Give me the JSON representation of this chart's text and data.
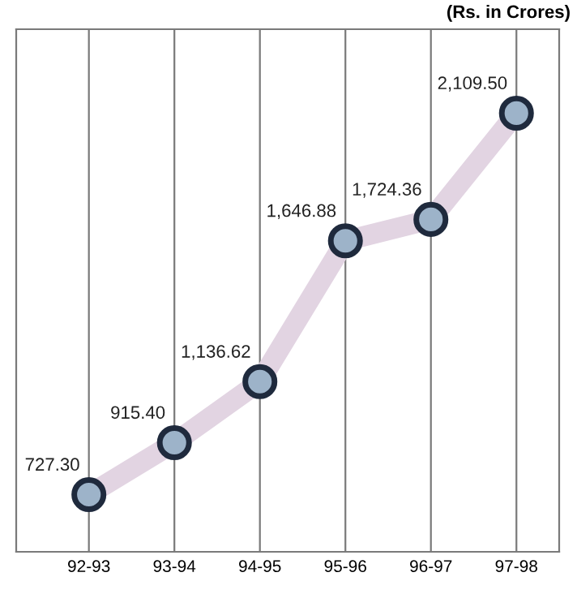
{
  "chart_data": {
    "type": "line",
    "title": "(Rs. in Crores)",
    "categories": [
      "92-93",
      "93-94",
      "94-95",
      "95-96",
      "96-97",
      "97-98"
    ],
    "series": [
      {
        "color": "#e2d4e2",
        "values": [
          727.3,
          915.4,
          1136.62,
          1646.88,
          1724.36,
          2109.5
        ],
        "value_labels": [
          "727.30",
          "915.40",
          "1,136.62",
          "1,646.88",
          "1,724.36",
          "2,109.50"
        ]
      }
    ],
    "grid": "x",
    "marker": "circle",
    "line_style": "solid",
    "tick_labels": "x"
  }
}
